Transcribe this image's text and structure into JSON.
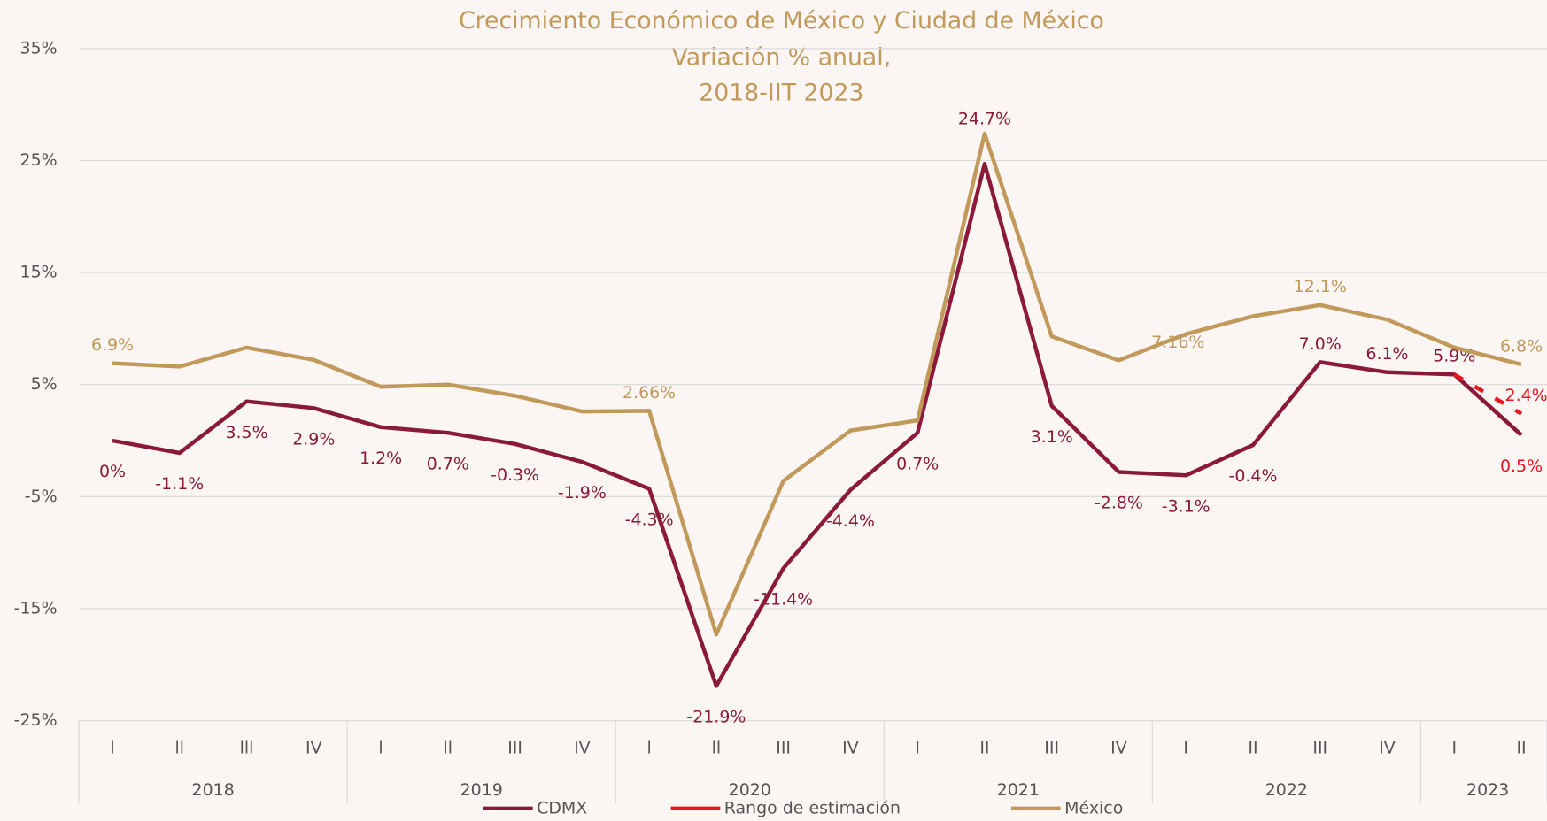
{
  "chart_data": {
    "type": "line",
    "title": "Crecimiento Económico de México y Ciudad de México",
    "subtitle": [
      "Variación % anual,",
      "2018-IIT 2023"
    ],
    "categories": [
      "l",
      "ll",
      "lll",
      "IV",
      "l",
      "ll",
      "III",
      "IV",
      "l",
      "ll",
      "III",
      "IV",
      "I",
      "II",
      "III",
      "IV",
      "I",
      "II",
      "III",
      "IV",
      "I",
      "II"
    ],
    "year_groups": [
      {
        "label": "2018",
        "size": 4
      },
      {
        "label": "2019",
        "size": 4
      },
      {
        "label": "2020",
        "size": 4
      },
      {
        "label": "2021",
        "size": 4
      },
      {
        "label": "2022",
        "size": 4
      },
      {
        "label": "2023",
        "size": 2
      }
    ],
    "series": [
      {
        "name": "CDMX",
        "color": "#8b1a3a",
        "values": [
          0,
          -1.1,
          3.5,
          2.9,
          1.2,
          0.7,
          -0.3,
          -1.9,
          -4.3,
          -21.9,
          -11.4,
          -4.4,
          0.7,
          24.7,
          3.1,
          -2.8,
          -3.1,
          -0.4,
          7.0,
          6.1,
          5.9,
          0.5
        ],
        "value_labels": [
          "0%",
          "-1.1%",
          "3.5%",
          "2.9%",
          "1.2%",
          "0.7%",
          "-0.3%",
          "-1.9%",
          "-4.3%",
          "-21.9%",
          "-11.4%",
          "-4.4%",
          "0.7%",
          "24.7%",
          "3.1%",
          "-2.8%",
          "-3.1%",
          "-0.4%",
          "7.0%",
          "6.1%",
          "5.9%",
          "0.5%"
        ]
      },
      {
        "name": "Rango de estimación",
        "color": "#e8151f",
        "dashed": true,
        "values": [
          null,
          null,
          null,
          null,
          null,
          null,
          null,
          null,
          null,
          null,
          null,
          null,
          null,
          null,
          null,
          null,
          null,
          null,
          null,
          null,
          5.9,
          2.4
        ],
        "value_labels": [
          null,
          null,
          null,
          null,
          null,
          null,
          null,
          null,
          null,
          null,
          null,
          null,
          null,
          null,
          null,
          null,
          null,
          null,
          null,
          null,
          null,
          "2.4%"
        ]
      },
      {
        "name": "México",
        "color": "#c19a5b",
        "values": [
          6.9,
          6.6,
          8.3,
          7.2,
          4.8,
          5.0,
          4.0,
          2.6,
          2.66,
          -17.3,
          -3.6,
          0.9,
          1.8,
          27.4,
          9.3,
          7.16,
          9.5,
          11.1,
          12.1,
          10.8,
          8.3,
          6.8
        ],
        "value_labels": [
          "6.9%",
          null,
          null,
          null,
          null,
          null,
          null,
          null,
          "2.66%",
          null,
          null,
          null,
          null,
          null,
          null,
          "7.16%",
          null,
          null,
          "12.1%",
          null,
          null,
          "6.8%"
        ]
      }
    ],
    "ylim": [
      -25,
      35
    ],
    "yticks": [
      {
        "value": -25,
        "label": "-25%"
      },
      {
        "value": -15,
        "label": "-15%"
      },
      {
        "value": -5,
        "label": "-5%"
      },
      {
        "value": 5,
        "label": "5%"
      },
      {
        "value": 15,
        "label": "15%"
      },
      {
        "value": 25,
        "label": "25%"
      },
      {
        "value": 35,
        "label": "35%"
      }
    ],
    "grid": true
  }
}
